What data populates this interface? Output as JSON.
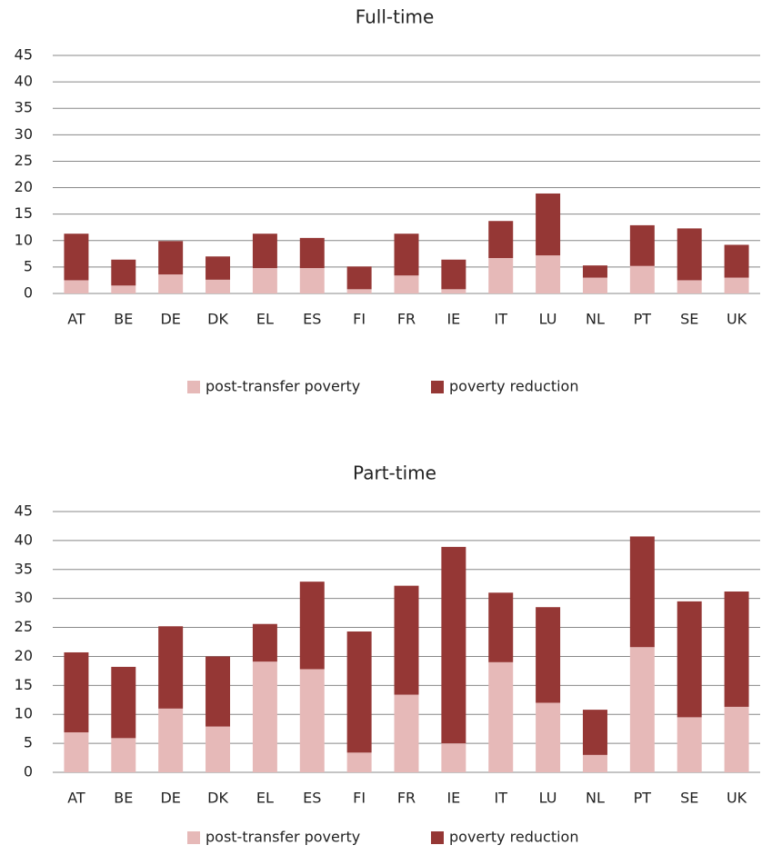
{
  "chart_data": [
    {
      "type": "bar",
      "stacked": true,
      "title": "Full-time",
      "categories": [
        "AT",
        "BE",
        "DE",
        "DK",
        "EL",
        "ES",
        "FI",
        "FR",
        "IE",
        "IT",
        "LU",
        "NL",
        "PT",
        "SE",
        "UK"
      ],
      "series": [
        {
          "name": "post-transfer poverty",
          "color": "#e6b9b8",
          "values": [
            2.5,
            1.5,
            3.6,
            2.6,
            4.8,
            4.8,
            0.8,
            3.4,
            0.8,
            6.7,
            7.2,
            3.0,
            5.2,
            2.5,
            3.0
          ]
        },
        {
          "name": "poverty reduction",
          "color": "#953735",
          "values": [
            8.8,
            4.9,
            6.3,
            4.4,
            6.5,
            5.7,
            4.3,
            7.9,
            5.6,
            7.0,
            11.7,
            2.3,
            7.7,
            9.8,
            6.2
          ]
        }
      ],
      "ylim": [
        0,
        45
      ],
      "yticks": [
        0,
        5,
        10,
        15,
        20,
        25,
        30,
        35,
        40,
        45
      ],
      "grid": true,
      "legend": "bottom"
    },
    {
      "type": "bar",
      "stacked": true,
      "title": "Part-time",
      "categories": [
        "AT",
        "BE",
        "DE",
        "DK",
        "EL",
        "ES",
        "FI",
        "FR",
        "IE",
        "IT",
        "LU",
        "NL",
        "PT",
        "SE",
        "UK"
      ],
      "series": [
        {
          "name": "post-transfer poverty",
          "color": "#e6b9b8",
          "values": [
            6.9,
            5.9,
            11.0,
            7.9,
            19.1,
            17.8,
            3.4,
            13.4,
            5.0,
            19.0,
            12.0,
            3.0,
            21.6,
            9.5,
            11.3
          ]
        },
        {
          "name": "poverty reduction",
          "color": "#953735",
          "values": [
            13.8,
            12.3,
            14.2,
            12.1,
            6.5,
            15.1,
            20.9,
            18.8,
            33.9,
            12.0,
            16.5,
            7.8,
            19.1,
            20.0,
            19.9
          ]
        }
      ],
      "ylim": [
        0,
        45
      ],
      "yticks": [
        0,
        5,
        10,
        15,
        20,
        25,
        30,
        35,
        40,
        45
      ],
      "grid": true,
      "legend": "bottom"
    }
  ]
}
